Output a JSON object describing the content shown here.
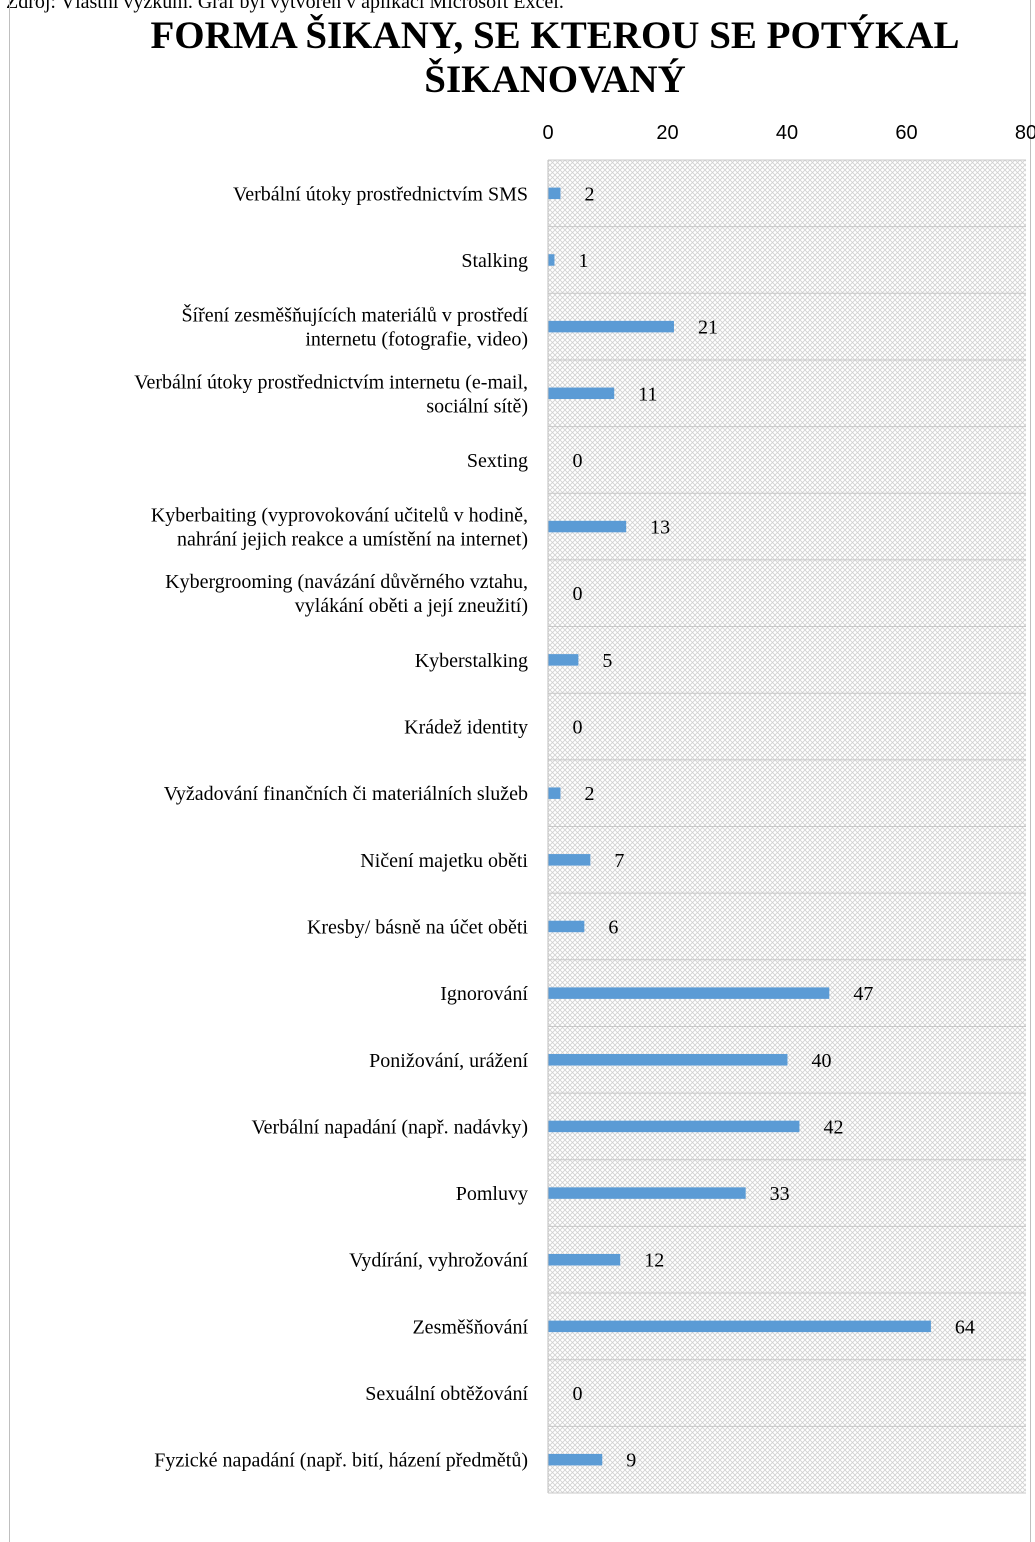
{
  "caption": "Zdroj: Vlastní výzkum. Graf byl vytvořen v aplikaci Microsoft Excel.",
  "chart_data": {
    "type": "bar",
    "orientation": "horizontal",
    "title": "FORMA ŠIKANY, SE KTEROU SE POTÝKAL ŠIKANOVANÝ",
    "xlim": [
      0,
      80
    ],
    "x_ticks": [
      "0",
      "20",
      "40",
      "60",
      "80"
    ],
    "x_axis_position": "top",
    "grid": true,
    "bar_color": "#5b9bd5",
    "categories": [
      "Verbální útoky prostřednictvím SMS",
      "Stalking",
      "Šíření zesměšňujících materiálů v prostředí internetu (fotografie, video)",
      "Verbální útoky prostřednictvím internetu (e-mail, sociální sítě)",
      "Sexting",
      "Kyberbaiting (vyprovokování učitelů v hodině, nahrání jejich reakce a umístění na internet)",
      "Kybergrooming (navázání důvěrného vztahu, vylákání oběti a její zneužití)",
      "Kyberstalking",
      "Krádež identity",
      "Vyžadování finančních či materiálních služeb",
      "Ničení majetku oběti",
      "Kresby/ básně na účet oběti",
      "Ignorování",
      "Ponižování, urážení",
      "Verbální napadání (např. nadávky)",
      "Pomluvy",
      "Vydírání, vyhrožování",
      "Zesměšňování",
      "Sexuální obtěžování",
      "Fyzické napadání (např. bití, házení předmětů)"
    ],
    "category_label_lines": [
      [
        "Verbální útoky prostřednictvím SMS"
      ],
      [
        "Stalking"
      ],
      [
        "Šíření zesměšňujících materiálů v prostředí",
        "internetu (fotografie, video)"
      ],
      [
        "Verbální útoky prostřednictvím internetu (e-mail,",
        "sociální sítě)"
      ],
      [
        "Sexting"
      ],
      [
        "Kyberbaiting (vyprovokování učitelů v hodině,",
        "nahrání jejich reakce a umístění na internet)"
      ],
      [
        "Kybergrooming (navázání důvěrného vztahu,",
        "vylákání oběti a její zneužití)"
      ],
      [
        "Kyberstalking"
      ],
      [
        "Krádež identity"
      ],
      [
        "Vyžadování finančních či materiálních služeb"
      ],
      [
        "Ničení majetku oběti"
      ],
      [
        "Kresby/ básně na účet oběti"
      ],
      [
        "Ignorování"
      ],
      [
        "Ponižování, urážení"
      ],
      [
        "Verbální napadání (např. nadávky)"
      ],
      [
        "Pomluvy"
      ],
      [
        "Vydírání, vyhrožování"
      ],
      [
        "Zesměšňování"
      ],
      [
        "Sexuální obtěžování"
      ],
      [
        "Fyzické napadání (např. bití, házení předmětů)"
      ]
    ],
    "values": [
      2,
      1,
      21,
      11,
      0,
      13,
      0,
      5,
      0,
      2,
      7,
      6,
      47,
      40,
      42,
      33,
      12,
      64,
      0,
      9
    ]
  }
}
